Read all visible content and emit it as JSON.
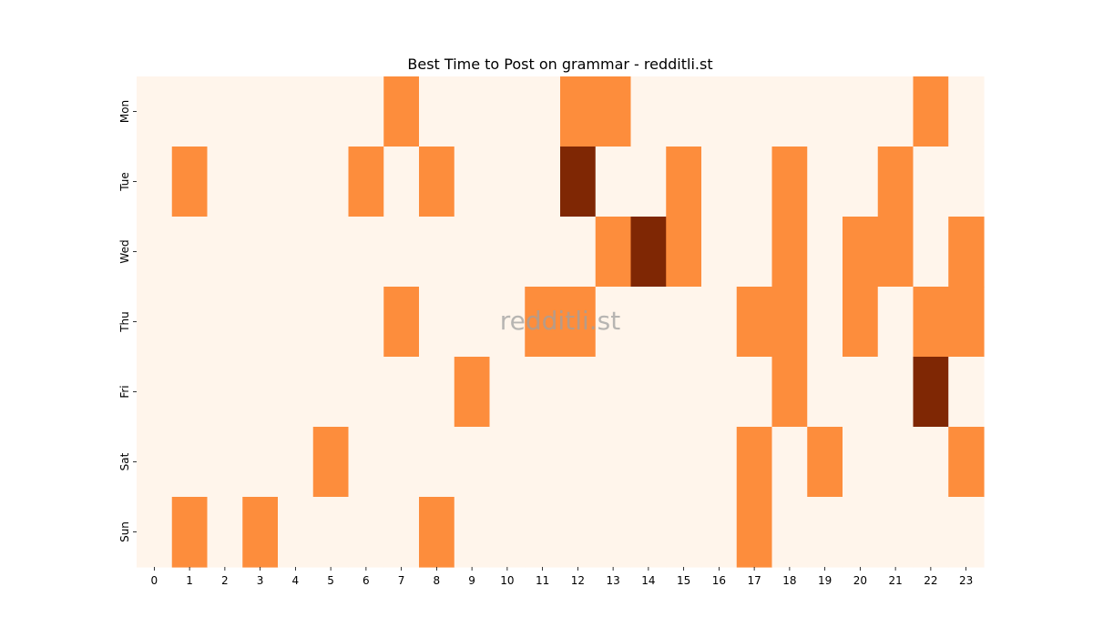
{
  "chart_data": {
    "type": "heatmap",
    "title": "Best Time to Post on grammar - redditli.st",
    "watermark": "redditli.st",
    "xlabel": "",
    "ylabel": "",
    "x_categories": [
      "0",
      "1",
      "2",
      "3",
      "4",
      "5",
      "6",
      "7",
      "8",
      "9",
      "10",
      "11",
      "12",
      "13",
      "14",
      "15",
      "16",
      "17",
      "18",
      "19",
      "20",
      "21",
      "22",
      "23"
    ],
    "y_categories": [
      "Mon",
      "Tue",
      "Wed",
      "Thu",
      "Fri",
      "Sat",
      "Sun"
    ],
    "values": [
      [
        0,
        0,
        0,
        0,
        0,
        0,
        0,
        1,
        0,
        0,
        0,
        0,
        1,
        1,
        0,
        0,
        0,
        0,
        0,
        0,
        0,
        0,
        1,
        0
      ],
      [
        0,
        1,
        0,
        0,
        0,
        0,
        1,
        0,
        1,
        0,
        0,
        0,
        2,
        0,
        0,
        1,
        0,
        0,
        1,
        0,
        0,
        1,
        0,
        0
      ],
      [
        0,
        0,
        0,
        0,
        0,
        0,
        0,
        0,
        0,
        0,
        0,
        0,
        0,
        1,
        2,
        1,
        0,
        0,
        1,
        0,
        1,
        1,
        0,
        1
      ],
      [
        0,
        0,
        0,
        0,
        0,
        0,
        0,
        1,
        0,
        0,
        0,
        1,
        1,
        0,
        0,
        0,
        0,
        1,
        1,
        0,
        1,
        0,
        1,
        1
      ],
      [
        0,
        0,
        0,
        0,
        0,
        0,
        0,
        0,
        0,
        1,
        0,
        0,
        0,
        0,
        0,
        0,
        0,
        0,
        1,
        0,
        0,
        0,
        2,
        0
      ],
      [
        0,
        0,
        0,
        0,
        0,
        1,
        0,
        0,
        0,
        0,
        0,
        0,
        0,
        0,
        0,
        0,
        0,
        1,
        0,
        1,
        0,
        0,
        0,
        1
      ],
      [
        0,
        1,
        0,
        1,
        0,
        0,
        0,
        0,
        1,
        0,
        0,
        0,
        0,
        0,
        0,
        0,
        0,
        1,
        0,
        0,
        0,
        0,
        0,
        0
      ]
    ],
    "colorscale": [
      "#fff5eb",
      "#fd8d3c",
      "#7f2704"
    ],
    "grid": false,
    "legend": "none"
  }
}
